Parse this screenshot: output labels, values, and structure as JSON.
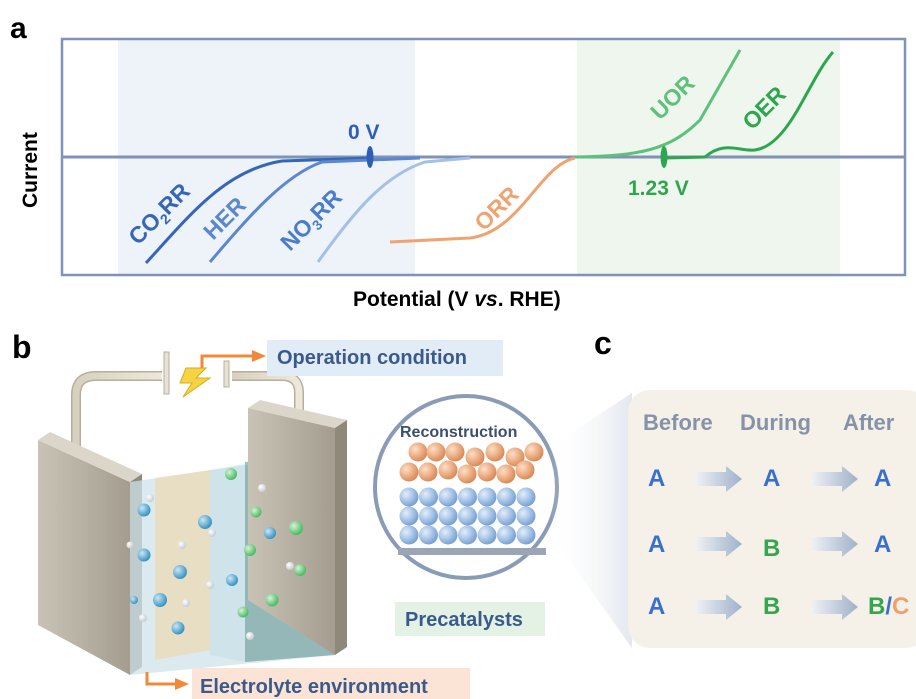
{
  "panel_a": {
    "letter": "a",
    "ylabel": "Current",
    "xlabel_prefix": "Potential (V ",
    "xlabel_italic": "vs",
    "xlabel_suffix": ". RHE)",
    "marker_zero": "0 V",
    "marker_oer": "1.23 V",
    "curves": {
      "co2rr": {
        "main": "CO",
        "sub": "2",
        "tail": "RR"
      },
      "her": "HER",
      "no3rr": {
        "main": "NO",
        "sub": "3",
        "tail": "RR"
      },
      "orr": "ORR",
      "uor": "UOR",
      "oer": "OER"
    }
  },
  "panel_b": {
    "letter": "b",
    "operation_label": "Operation condition",
    "electrolyte_label": "Electrolyte environment",
    "reconstruction_label": "Reconstruction",
    "precatalysts_label": "Precatalysts"
  },
  "panel_c": {
    "letter": "c",
    "headers": [
      "Before",
      "During",
      "After"
    ],
    "rows": [
      [
        "A",
        "A",
        "A"
      ],
      [
        "A",
        "B",
        "A"
      ],
      [
        "A",
        "B",
        "B/C"
      ]
    ],
    "last_cell": {
      "b": "B",
      "slash": "/",
      "c": "C"
    }
  },
  "colors": {
    "blue_dark": "#3566b8",
    "blue_mid": "#5b87cf",
    "blue_light": "#9fbbe3",
    "orange": "#f0a370",
    "green_light": "#5cc17a",
    "green_dark": "#2ea54f",
    "axis": "#7f93b8",
    "letter_blue": "#3a6fcf",
    "letter_green": "#35a54f",
    "letter_orange": "#eea16c"
  }
}
